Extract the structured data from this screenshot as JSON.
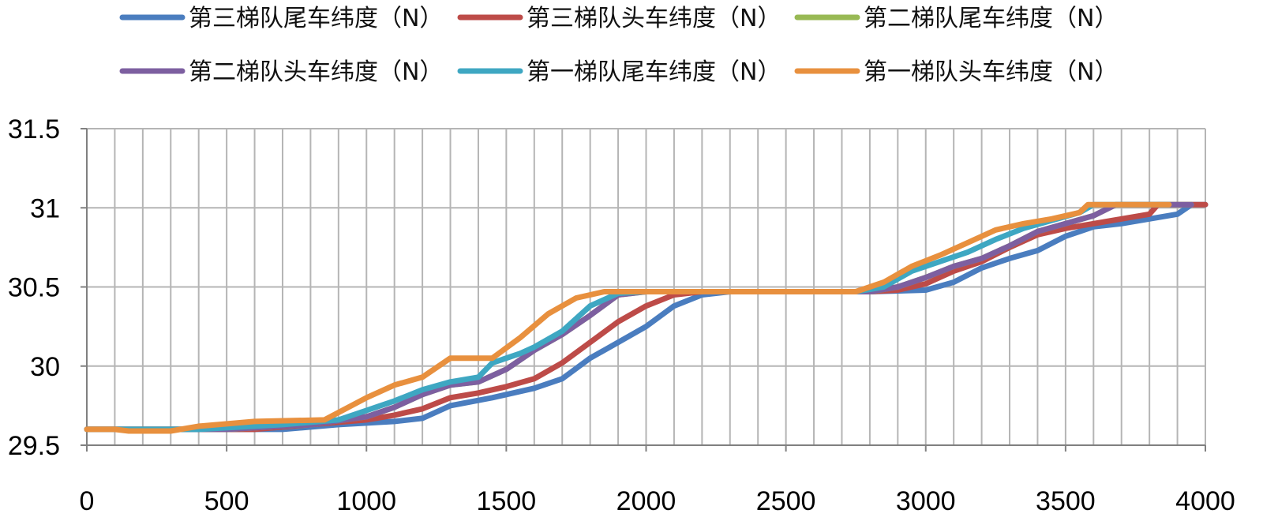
{
  "chart_data": {
    "type": "line",
    "title": "",
    "xlabel": "",
    "ylabel": "",
    "xlim": [
      0,
      4000
    ],
    "ylim": [
      29.5,
      31.5
    ],
    "x_ticks": [
      0,
      500,
      1000,
      1500,
      2000,
      2500,
      3000,
      3500,
      4000
    ],
    "y_ticks": [
      29.5,
      30,
      30.5,
      31,
      31.5
    ],
    "x_tick_labels": [
      "0",
      "500",
      "1000",
      "1500",
      "2000",
      "2500",
      "3000",
      "3500",
      "4000"
    ],
    "y_tick_labels": [
      "29.5",
      "30",
      "30.5",
      "31",
      "31.5"
    ],
    "grid": "vertical every 100, horizontal every 0.5",
    "legend_position": "top",
    "series": [
      {
        "name": "第三梯队尾车纬度（N）",
        "color": "#4a7dbf",
        "points": [
          [
            0,
            29.6
          ],
          [
            400,
            29.6
          ],
          [
            700,
            29.6
          ],
          [
            900,
            29.63
          ],
          [
            1100,
            29.65
          ],
          [
            1200,
            29.67
          ],
          [
            1300,
            29.75
          ],
          [
            1450,
            29.8
          ],
          [
            1600,
            29.86
          ],
          [
            1700,
            29.92
          ],
          [
            1800,
            30.05
          ],
          [
            1900,
            30.15
          ],
          [
            2000,
            30.25
          ],
          [
            2100,
            30.38
          ],
          [
            2200,
            30.45
          ],
          [
            2300,
            30.47
          ],
          [
            2500,
            30.47
          ],
          [
            2800,
            30.47
          ],
          [
            3000,
            30.48
          ],
          [
            3100,
            30.53
          ],
          [
            3200,
            30.62
          ],
          [
            3300,
            30.68
          ],
          [
            3400,
            30.73
          ],
          [
            3500,
            30.82
          ],
          [
            3600,
            30.88
          ],
          [
            3700,
            30.9
          ],
          [
            3800,
            30.93
          ],
          [
            3900,
            30.96
          ],
          [
            3950,
            31.02
          ],
          [
            4000,
            31.02
          ]
        ]
      },
      {
        "name": "第三梯队头车纬度（N）",
        "color": "#bd4b48",
        "points": [
          [
            0,
            29.6
          ],
          [
            400,
            29.6
          ],
          [
            600,
            29.6
          ],
          [
            800,
            29.63
          ],
          [
            1000,
            29.66
          ],
          [
            1100,
            29.69
          ],
          [
            1200,
            29.73
          ],
          [
            1300,
            29.8
          ],
          [
            1400,
            29.83
          ],
          [
            1500,
            29.87
          ],
          [
            1600,
            29.92
          ],
          [
            1700,
            30.02
          ],
          [
            1800,
            30.15
          ],
          [
            1900,
            30.28
          ],
          [
            2000,
            30.38
          ],
          [
            2100,
            30.45
          ],
          [
            2200,
            30.47
          ],
          [
            2500,
            30.47
          ],
          [
            2800,
            30.47
          ],
          [
            2900,
            30.48
          ],
          [
            3000,
            30.52
          ],
          [
            3100,
            30.6
          ],
          [
            3200,
            30.66
          ],
          [
            3300,
            30.75
          ],
          [
            3400,
            30.83
          ],
          [
            3500,
            30.87
          ],
          [
            3600,
            30.9
          ],
          [
            3700,
            30.93
          ],
          [
            3800,
            30.96
          ],
          [
            3830,
            31.02
          ],
          [
            4000,
            31.02
          ]
        ]
      },
      {
        "name": "第二梯队尾车纬度（N）",
        "color": "#98b954",
        "points": [
          [
            0,
            29.6
          ],
          [
            500,
            29.6
          ],
          [
            800,
            29.63
          ],
          [
            1000,
            29.68
          ],
          [
            1100,
            29.74
          ],
          [
            1200,
            29.82
          ],
          [
            1300,
            29.88
          ],
          [
            1400,
            29.9
          ],
          [
            1500,
            29.98
          ],
          [
            1600,
            30.1
          ],
          [
            1700,
            30.2
          ],
          [
            1800,
            30.32
          ],
          [
            1900,
            30.45
          ],
          [
            2000,
            30.47
          ],
          [
            2500,
            30.47
          ],
          [
            2800,
            30.47
          ],
          [
            2900,
            30.5
          ],
          [
            3000,
            30.56
          ],
          [
            3100,
            30.63
          ],
          [
            3200,
            30.68
          ],
          [
            3300,
            30.76
          ],
          [
            3400,
            30.85
          ],
          [
            3500,
            30.9
          ],
          [
            3600,
            30.95
          ],
          [
            3680,
            31.02
          ],
          [
            3950,
            31.02
          ]
        ]
      },
      {
        "name": "第二梯队头车纬度（N）",
        "color": "#7d5fa0",
        "points": [
          [
            0,
            29.6
          ],
          [
            500,
            29.6
          ],
          [
            800,
            29.63
          ],
          [
            1000,
            29.68
          ],
          [
            1100,
            29.74
          ],
          [
            1200,
            29.82
          ],
          [
            1300,
            29.88
          ],
          [
            1400,
            29.9
          ],
          [
            1500,
            29.98
          ],
          [
            1600,
            30.1
          ],
          [
            1700,
            30.2
          ],
          [
            1800,
            30.32
          ],
          [
            1900,
            30.45
          ],
          [
            2000,
            30.47
          ],
          [
            2500,
            30.47
          ],
          [
            2800,
            30.47
          ],
          [
            2900,
            30.5
          ],
          [
            3000,
            30.56
          ],
          [
            3100,
            30.63
          ],
          [
            3200,
            30.68
          ],
          [
            3300,
            30.76
          ],
          [
            3400,
            30.85
          ],
          [
            3500,
            30.9
          ],
          [
            3600,
            30.95
          ],
          [
            3680,
            31.02
          ],
          [
            3950,
            31.02
          ]
        ]
      },
      {
        "name": "第一梯队尾车纬度（N）",
        "color": "#3ea7c2",
        "points": [
          [
            0,
            29.6
          ],
          [
            400,
            29.6
          ],
          [
            700,
            29.63
          ],
          [
            900,
            29.66
          ],
          [
            1000,
            29.72
          ],
          [
            1100,
            29.78
          ],
          [
            1200,
            29.85
          ],
          [
            1300,
            29.9
          ],
          [
            1400,
            29.93
          ],
          [
            1450,
            30.02
          ],
          [
            1550,
            30.08
          ],
          [
            1600,
            30.12
          ],
          [
            1700,
            30.22
          ],
          [
            1800,
            30.38
          ],
          [
            1900,
            30.46
          ],
          [
            2000,
            30.47
          ],
          [
            2500,
            30.47
          ],
          [
            2750,
            30.47
          ],
          [
            2850,
            30.5
          ],
          [
            2950,
            30.6
          ],
          [
            3050,
            30.66
          ],
          [
            3150,
            30.72
          ],
          [
            3250,
            30.8
          ],
          [
            3350,
            30.87
          ],
          [
            3450,
            30.92
          ],
          [
            3550,
            30.97
          ],
          [
            3600,
            31.02
          ],
          [
            3870,
            31.02
          ]
        ]
      },
      {
        "name": "第一梯队头车纬度（N）",
        "color": "#e8903e",
        "points": [
          [
            0,
            29.6
          ],
          [
            100,
            29.6
          ],
          [
            150,
            29.59
          ],
          [
            300,
            29.59
          ],
          [
            400,
            29.62
          ],
          [
            600,
            29.65
          ],
          [
            850,
            29.66
          ],
          [
            1000,
            29.8
          ],
          [
            1100,
            29.88
          ],
          [
            1200,
            29.93
          ],
          [
            1300,
            30.05
          ],
          [
            1450,
            30.05
          ],
          [
            1550,
            30.18
          ],
          [
            1650,
            30.33
          ],
          [
            1750,
            30.43
          ],
          [
            1850,
            30.47
          ],
          [
            2000,
            30.47
          ],
          [
            2500,
            30.47
          ],
          [
            2750,
            30.47
          ],
          [
            2850,
            30.53
          ],
          [
            2950,
            30.63
          ],
          [
            3050,
            30.7
          ],
          [
            3150,
            30.78
          ],
          [
            3250,
            30.86
          ],
          [
            3350,
            30.9
          ],
          [
            3450,
            30.93
          ],
          [
            3550,
            30.97
          ],
          [
            3580,
            31.02
          ],
          [
            3870,
            31.02
          ]
        ]
      }
    ]
  }
}
